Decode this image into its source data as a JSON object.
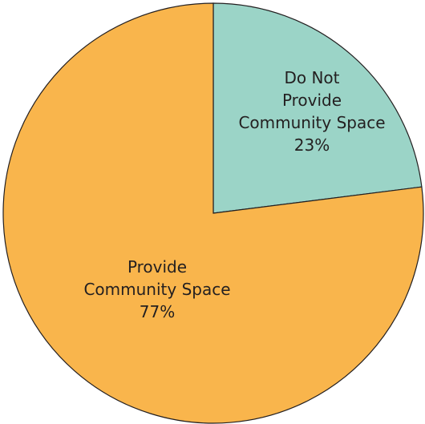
{
  "chart_data": {
    "type": "pie",
    "start_angle_deg": 0,
    "direction": "clockwise",
    "slices": [
      {
        "label_lines": [
          "Do Not",
          "Provide",
          "Community Space"
        ],
        "value_label": "23%",
        "value": 23,
        "color": "#9bd4c7"
      },
      {
        "label_lines": [
          "Provide",
          "Community Space"
        ],
        "value_label": "77%",
        "value": 77,
        "color": "#f9b54c"
      }
    ],
    "stroke_color": "#231f20"
  }
}
